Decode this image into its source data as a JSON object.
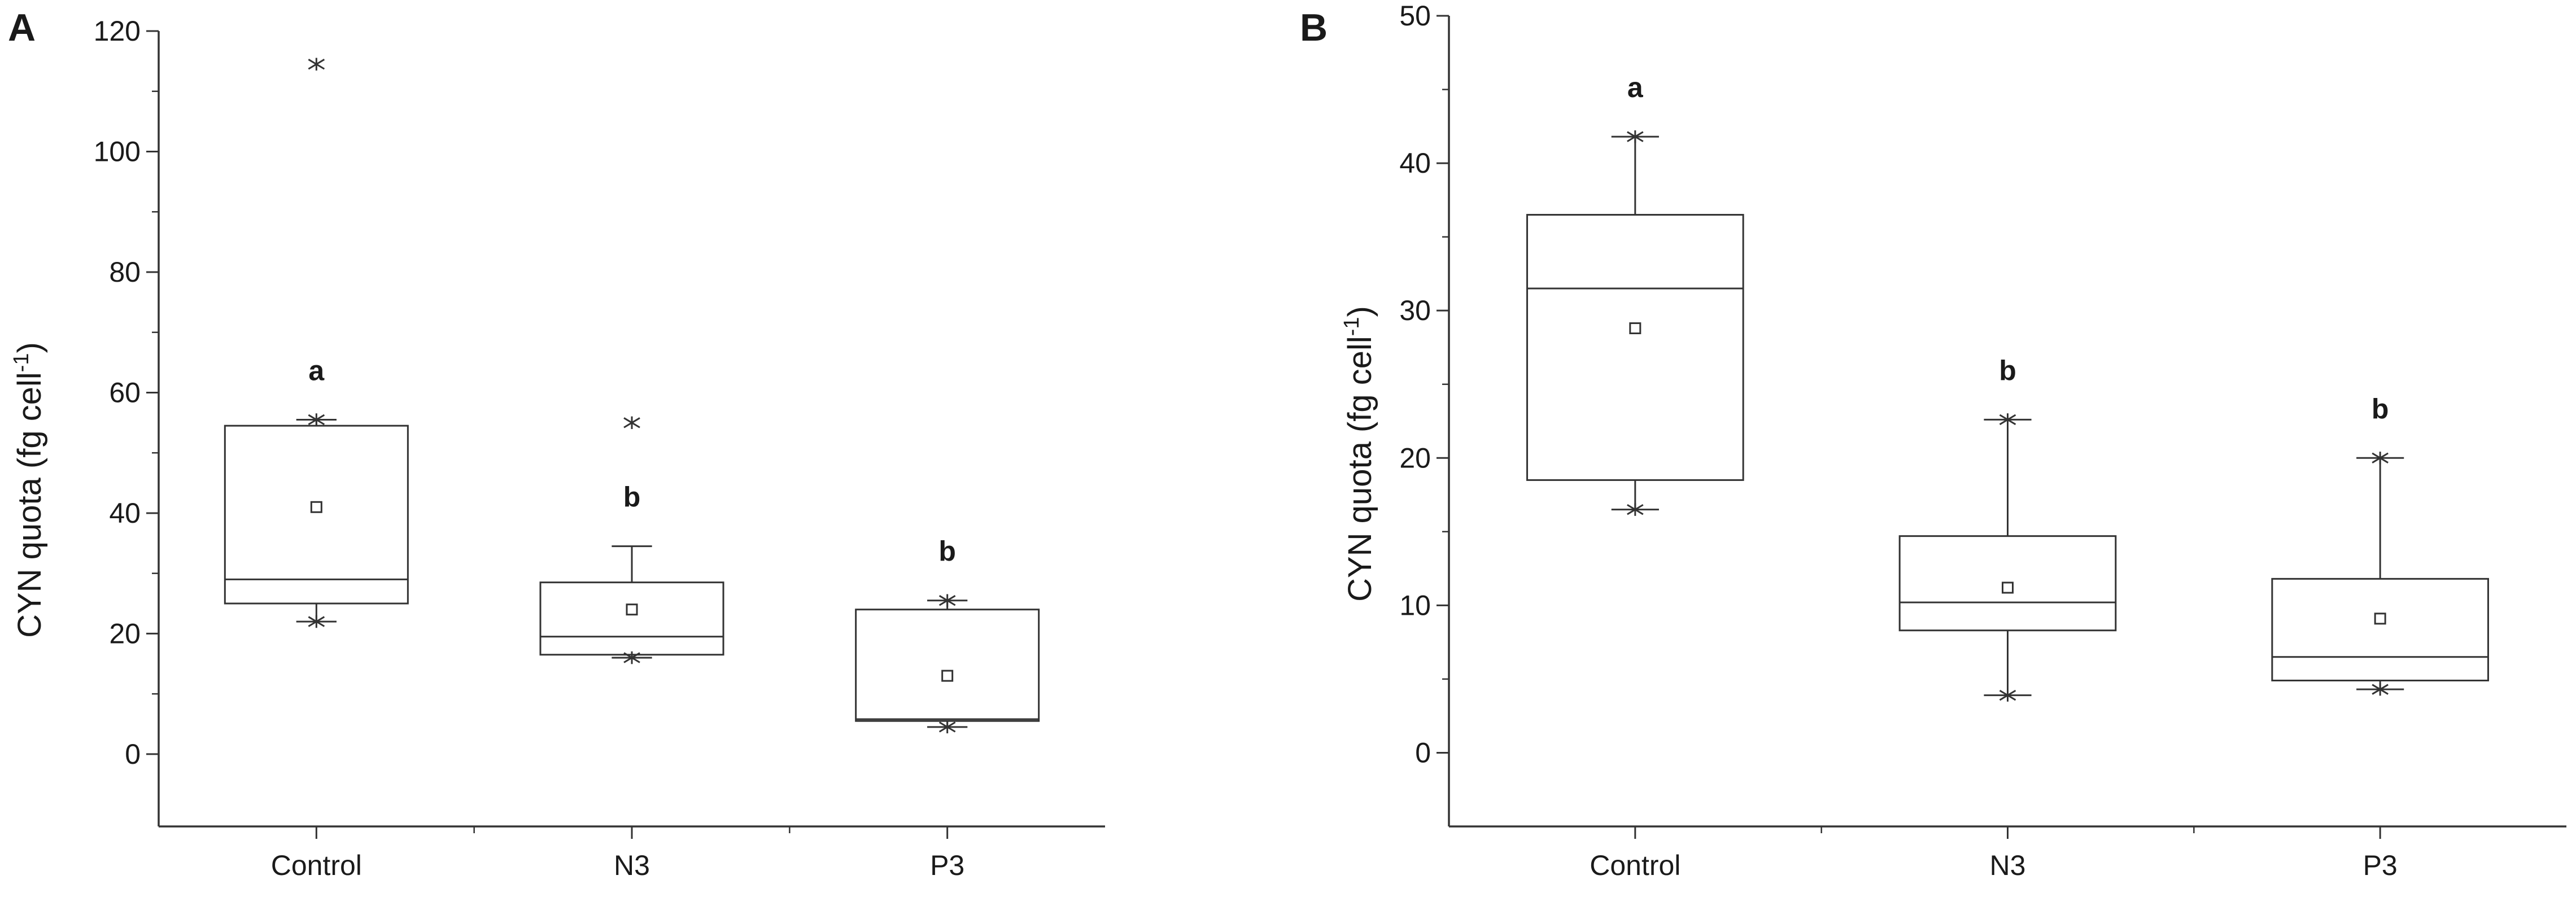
{
  "chart_data": [
    {
      "panel": "A",
      "type": "box",
      "ylabel": "CYN quota (fg cell⁻¹)",
      "ylabel_main": "CYN quota (fg cell",
      "ylabel_sup": "-1",
      "ylabel_close": ")",
      "xlabel": "",
      "ylim": [
        -12,
        120
      ],
      "yticks": [
        0,
        20,
        40,
        60,
        80,
        100,
        120
      ],
      "categories": [
        "Control",
        "N3",
        "P3"
      ],
      "boxes": [
        {
          "category": "Control",
          "q1": 25,
          "median": 29,
          "q3": 54.5,
          "whisker_low": 22,
          "whisker_high": 55.5,
          "mean": 41,
          "min_marker": 22,
          "max_marker": 55.5,
          "outliers": [
            114.5
          ],
          "sig": "a"
        },
        {
          "category": "N3",
          "q1": 16.5,
          "median": 19.5,
          "q3": 28.5,
          "whisker_low": 16,
          "whisker_high": 34.5,
          "mean": 24,
          "min_marker": 16,
          "max_marker": null,
          "outliers": [
            55
          ],
          "sig": "b"
        },
        {
          "category": "P3",
          "q1": 5.5,
          "median": 5.8,
          "q3": 24,
          "whisker_low": 4.5,
          "whisker_high": 25.5,
          "mean": 13,
          "min_marker": 4.5,
          "max_marker": 25.5,
          "outliers": [],
          "sig": "b"
        }
      ],
      "grid": false,
      "legend": "none"
    },
    {
      "panel": "B",
      "type": "box",
      "ylabel": "CYN quota (fg cell⁻¹)",
      "ylabel_main": "CYN  quota (fg cell",
      "ylabel_sup": "-1",
      "ylabel_close": ")",
      "xlabel": "",
      "ylim": [
        -5,
        50
      ],
      "yticks": [
        0,
        10,
        20,
        30,
        40,
        50
      ],
      "categories": [
        "Control",
        "N3",
        "P3"
      ],
      "boxes": [
        {
          "category": "Control",
          "q1": 18.5,
          "median": 31.5,
          "q3": 36.5,
          "whisker_low": 16.5,
          "whisker_high": 41.8,
          "mean": 28.8,
          "min_marker": 16.5,
          "max_marker": 41.8,
          "outliers": [],
          "sig": "a"
        },
        {
          "category": "N3",
          "q1": 8.3,
          "median": 10.2,
          "q3": 14.7,
          "whisker_low": 3.9,
          "whisker_high": 22.6,
          "mean": 11.2,
          "min_marker": 3.9,
          "max_marker": 22.6,
          "outliers": [],
          "sig": "b"
        },
        {
          "category": "P3",
          "q1": 4.9,
          "median": 6.5,
          "q3": 11.8,
          "whisker_low": 4.3,
          "whisker_high": 20,
          "mean": 9.1,
          "min_marker": 4.3,
          "max_marker": 20,
          "outliers": [],
          "sig": "b"
        }
      ],
      "grid": false,
      "legend": "none"
    }
  ],
  "colors": {
    "line": "#333333",
    "text": "#1a1a1a",
    "background": "#ffffff"
  }
}
